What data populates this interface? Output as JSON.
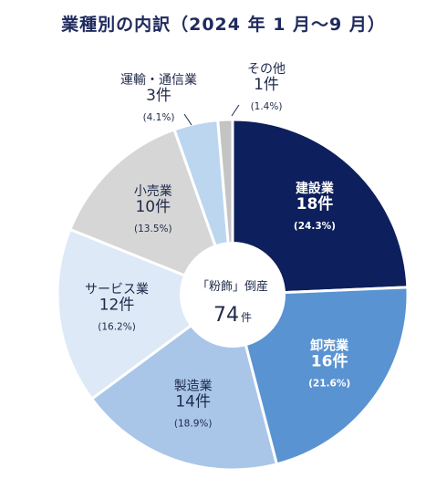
{
  "chart_data": {
    "type": "pie",
    "title": "業種別の内訳（2024 年 1 月〜9 月）",
    "center_label": "「粉飾」倒産",
    "center_value": "74",
    "center_unit": "件",
    "total": 74,
    "slices": [
      {
        "label": "建設業",
        "count": 18,
        "count_text": "18件",
        "pct_text": "(24.3%)",
        "color": "#0d1f5c",
        "text_color": "#ffffff"
      },
      {
        "label": "卸売業",
        "count": 16,
        "count_text": "16件",
        "pct_text": "(21.6%)",
        "color": "#5a93d2",
        "text_color": "#ffffff"
      },
      {
        "label": "製造業",
        "count": 14,
        "count_text": "14件",
        "pct_text": "(18.9%)",
        "color": "#a9c6e8",
        "text_color": "#1f2a4a"
      },
      {
        "label": "サービス業",
        "count": 12,
        "count_text": "12件",
        "pct_text": "(16.2%)",
        "color": "#dde9f6",
        "text_color": "#1f2a4a"
      },
      {
        "label": "小売業",
        "count": 10,
        "count_text": "10件",
        "pct_text": "(13.5%)",
        "color": "#d6d6d6",
        "text_color": "#1f2a4a"
      },
      {
        "label": "運輸・通信業",
        "count": 3,
        "count_text": "3件",
        "pct_text": "(4.1%)",
        "color": "#bcd6ef",
        "text_color": "#1f2a4a"
      },
      {
        "label": "その他",
        "count": 1,
        "count_text": "1件",
        "pct_text": "(1.4%)",
        "color": "#c4c4c4",
        "text_color": "#1f2a4a"
      }
    ]
  }
}
